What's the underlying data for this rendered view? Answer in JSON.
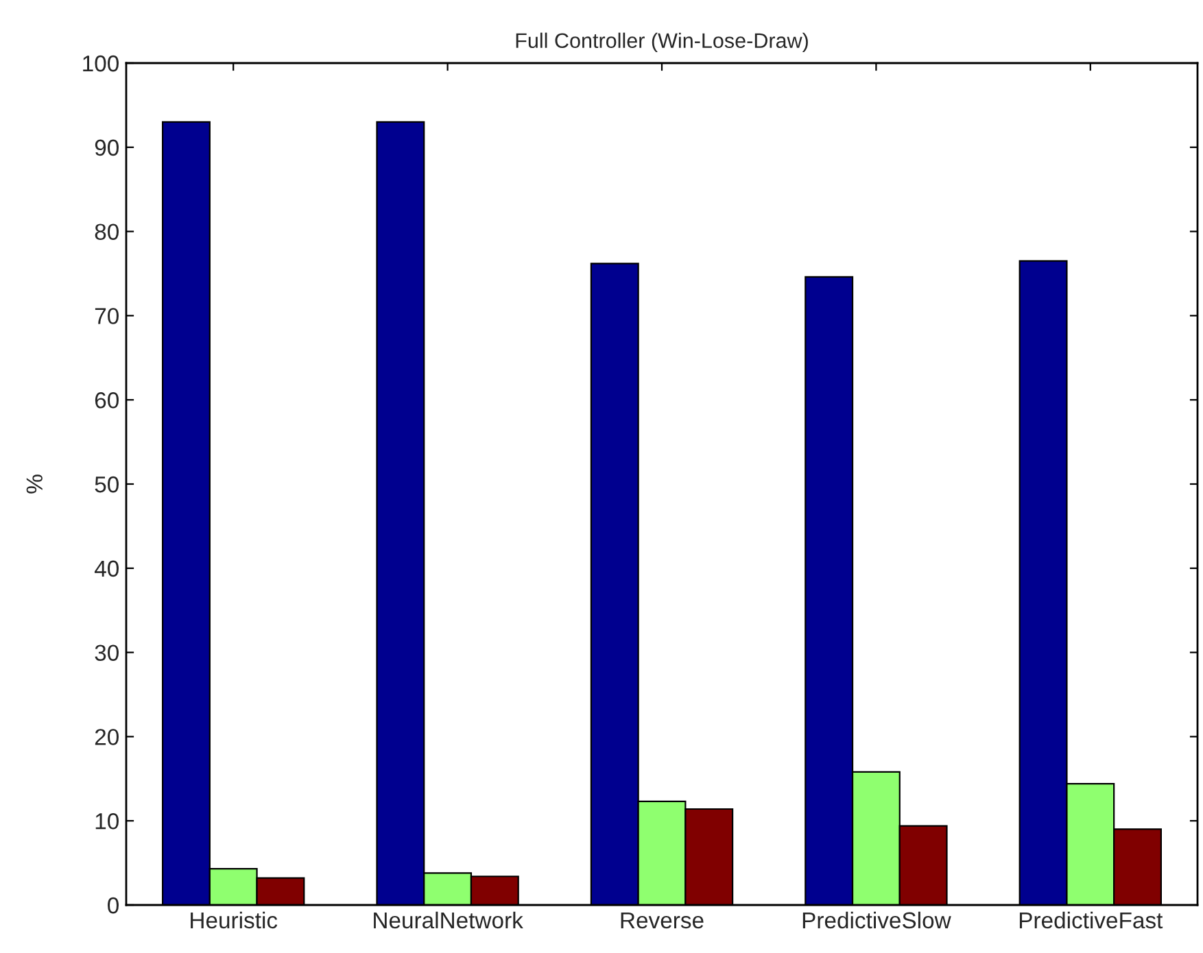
{
  "chart_data": {
    "type": "bar",
    "title": "Full Controller (Win-Lose-Draw)",
    "ylabel": "%",
    "categories": [
      "Heuristic",
      "NeuralNetwork",
      "Reverse",
      "PredictiveSlow",
      "PredictiveFast"
    ],
    "series": [
      {
        "color": "#00008f",
        "values": [
          93.0,
          93.0,
          76.2,
          74.6,
          76.5
        ]
      },
      {
        "color": "#8fff6f",
        "values": [
          4.3,
          3.8,
          12.3,
          15.8,
          14.4
        ]
      },
      {
        "color": "#800000",
        "values": [
          3.2,
          3.4,
          11.4,
          9.4,
          9.0
        ]
      }
    ],
    "ylim": [
      0,
      100
    ],
    "yticks": [
      0,
      10,
      20,
      30,
      40,
      50,
      60,
      70,
      80,
      90,
      100
    ],
    "grid": false
  }
}
